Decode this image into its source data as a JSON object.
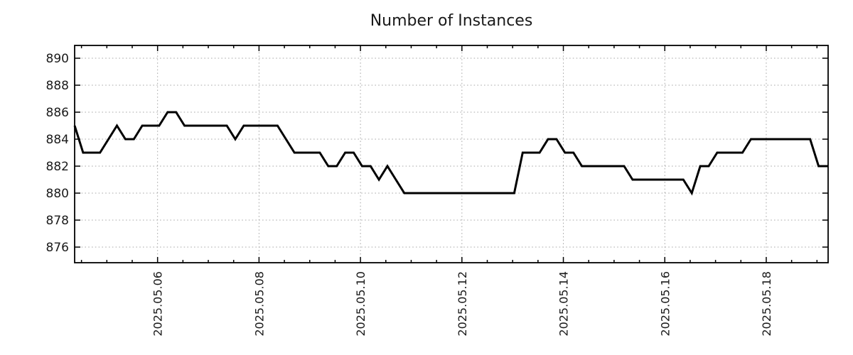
{
  "chart_data": {
    "type": "line",
    "title": "Number of Instances",
    "xlabel": "",
    "ylabel": "",
    "x_start": "2025-05-04 08:00",
    "x_step_hours": 4,
    "x_tick_labels": [
      "2025.05.06",
      "2025.05.08",
      "2025.05.10",
      "2025.05.12",
      "2025.05.14",
      "2025.05.16",
      "2025.05.18"
    ],
    "x_minor_tick_hours": 12,
    "y_tick_labels": [
      "890",
      "888",
      "886",
      "884",
      "882",
      "880",
      "878",
      "876"
    ],
    "ylim": [
      874.8,
      891.0
    ],
    "grid": "dotted",
    "legend": "none",
    "line_color": "#000000",
    "grid_color": "#a8a8a8",
    "series": [
      {
        "name": "instances",
        "values": [
          885,
          883,
          883,
          883,
          884,
          885,
          884,
          884,
          885,
          885,
          885,
          886,
          886,
          885,
          885,
          885,
          885,
          885,
          885,
          884,
          885,
          885,
          885,
          885,
          885,
          884,
          883,
          883,
          883,
          883,
          882,
          882,
          883,
          883,
          882,
          882,
          881,
          882,
          881,
          880,
          880,
          880,
          880,
          880,
          880,
          880,
          880,
          880,
          880,
          880,
          880,
          880,
          880,
          883,
          883,
          883,
          884,
          884,
          883,
          883,
          882,
          882,
          882,
          882,
          882,
          882,
          881,
          881,
          881,
          881,
          881,
          881,
          881,
          880,
          882,
          882,
          883,
          883,
          883,
          883,
          884,
          884,
          884,
          884,
          884,
          884,
          884,
          884,
          882,
          882
        ]
      }
    ]
  }
}
